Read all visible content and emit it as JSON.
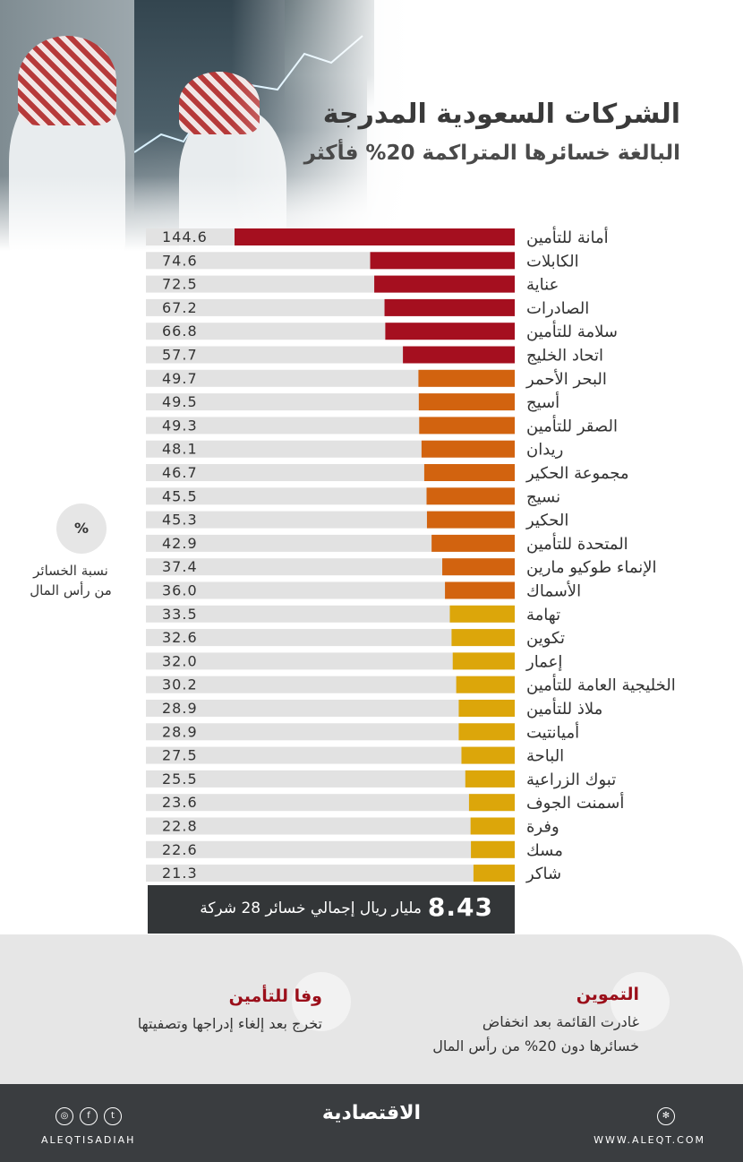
{
  "header": {
    "title": "الشركات السعودية المدرجة",
    "subtitle": "البالغة خسائرها المتراكمة 20% فأكثر"
  },
  "legend": {
    "symbol": "%",
    "label_line1": "نسبة الخسائر",
    "label_line2": "من رأس المال"
  },
  "chart_data": {
    "type": "bar",
    "orientation": "horizontal",
    "title": "الشركات السعودية المدرجة",
    "subtitle": "البالغة خسائرها المتراكمة 20% فأكثر",
    "xlabel": "",
    "ylabel": "",
    "xlim": [
      0,
      160
    ],
    "colors": {
      "high": "#a50f1f",
      "mid": "#d2630f",
      "low": "#dca60a",
      "track": "#e2e2e2"
    },
    "categories": [
      "أمانة للتأمين",
      "الكابلات",
      "عناية",
      "الصادرات",
      "سلامة للتأمين",
      "اتحاد الخليج",
      "البحر الأحمر",
      "أسيج",
      "الصقر للتأمين",
      "ريدان",
      "مجموعة الحكير",
      "نسيج",
      "الحكير",
      "المتحدة للتأمين",
      "الإنماء طوكيو مارين",
      "الأسماك",
      "تهامة",
      "تكوين",
      "إعمار",
      "الخليجية العامة للتأمين",
      "ملاذ للتأمين",
      "أميانتيت",
      "الباحة",
      "تبوك الزراعية",
      "أسمنت الجوف",
      "وفرة",
      "مسك",
      "شاكر"
    ],
    "values": [
      144.6,
      74.6,
      72.5,
      67.2,
      66.8,
      57.7,
      49.7,
      49.5,
      49.3,
      48.1,
      46.7,
      45.5,
      45.3,
      42.9,
      37.4,
      36.0,
      33.5,
      32.6,
      32.0,
      30.2,
      28.9,
      28.9,
      27.5,
      25.5,
      23.6,
      22.8,
      22.6,
      21.3
    ],
    "labels": [
      "144.6",
      "74.6",
      "72.5",
      "67.2",
      "66.8",
      "57.7",
      "49.7",
      "49.5",
      "49.3",
      "48.1",
      "46.7",
      "45.5",
      "45.3",
      "42.9",
      "37.4",
      "36.0",
      "33.5",
      "32.6",
      "32.0",
      "30.2",
      "28.9",
      "28.9",
      "27.5",
      "25.5",
      "23.6",
      "22.8",
      "22.6",
      "21.3"
    ]
  },
  "total": {
    "value": "8.43",
    "text": "مليار ريال إجمالي خسائر 28 شركة"
  },
  "notes": {
    "right": {
      "title": "التموين",
      "line1": "غادرت القائمة بعد انخفاض",
      "line2": "خسائرها دون 20% من رأس المال"
    },
    "left": {
      "title": "وفا للتأمين",
      "line1": "تخرج بعد إلغاء إدراجها وتصفيتها"
    }
  },
  "footer": {
    "handle": "ALEQTISADIAH",
    "logo": "الاقتصادية",
    "site": "WWW.ALEQT.COM",
    "icons": [
      "instagram-icon",
      "facebook-icon",
      "twitter-icon",
      "web-icon"
    ]
  }
}
